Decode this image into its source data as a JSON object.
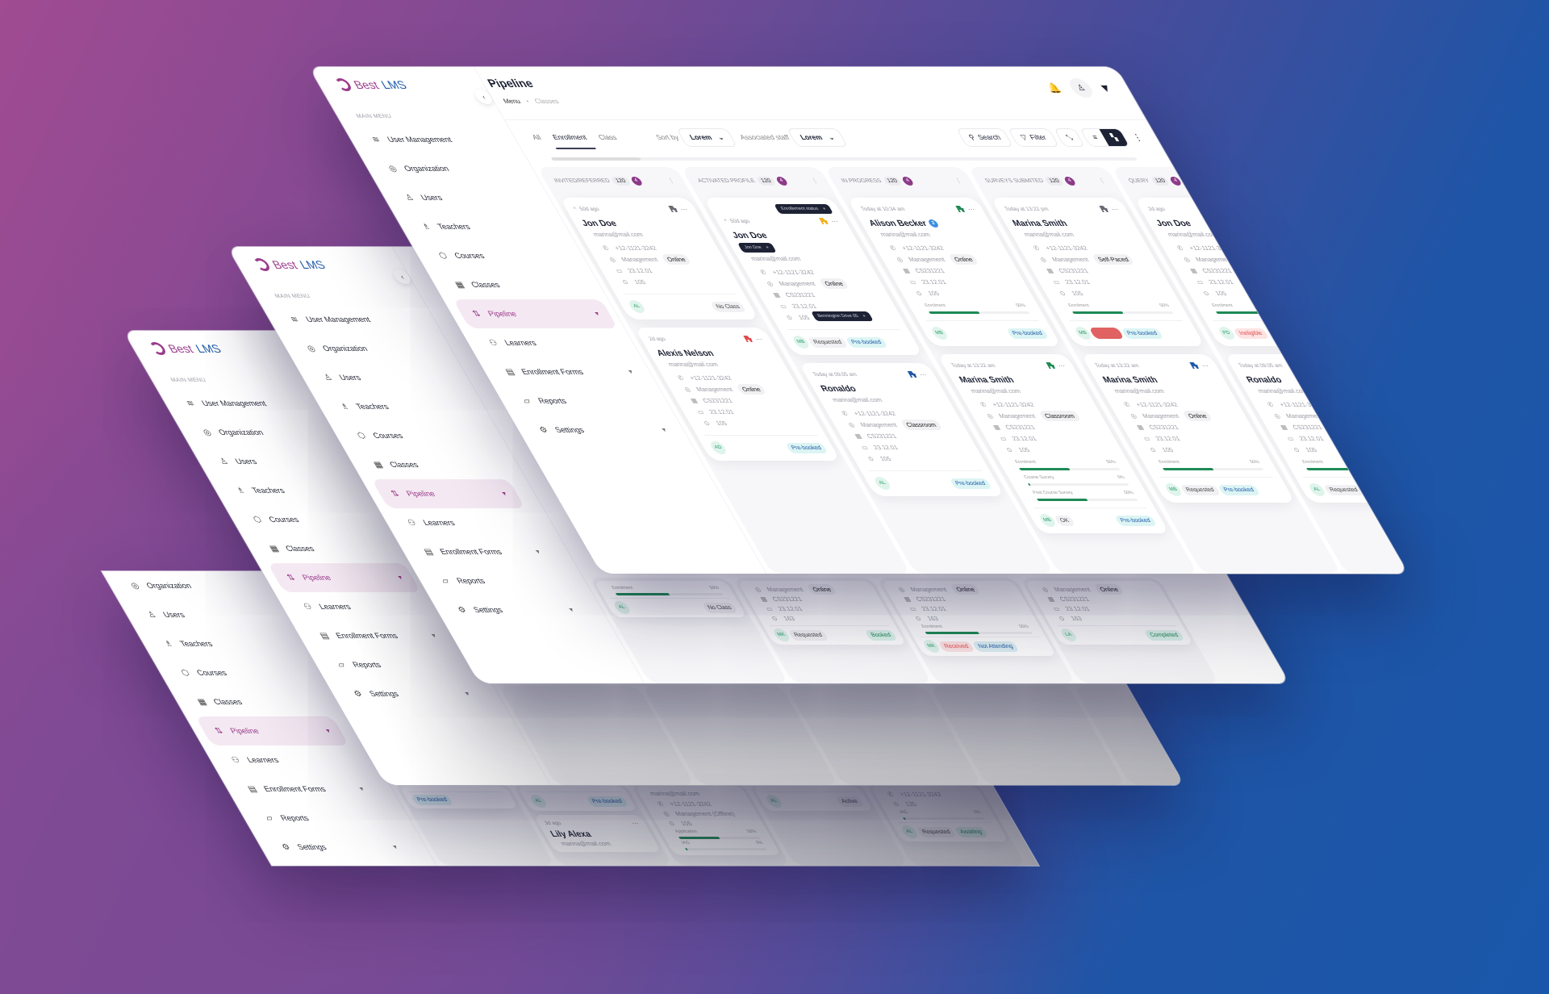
{
  "app": {
    "logo_best": "Best",
    "logo_lms": "LMS"
  },
  "sidebar": {
    "section": "MAIN MENU",
    "items": [
      {
        "label": "User Management",
        "icon": "layers-icon"
      },
      {
        "label": "Organization",
        "icon": "globe-icon"
      },
      {
        "label": "Users",
        "icon": "user-icon"
      },
      {
        "label": "Teachers",
        "icon": "teacher-icon"
      },
      {
        "label": "Courses",
        "icon": "box-icon"
      },
      {
        "label": "Classes",
        "icon": "grid-icon"
      },
      {
        "label": "Pipeline",
        "icon": "sliders-icon",
        "active": true,
        "caret": true
      },
      {
        "label": "Learners",
        "icon": "users-icon"
      },
      {
        "label": "Enrollment Forms",
        "icon": "form-icon",
        "caret": true
      },
      {
        "label": "Reports",
        "icon": "file-icon"
      },
      {
        "label": "Settings",
        "icon": "gear-icon",
        "caret": true
      }
    ]
  },
  "header": {
    "title": "Pipeline",
    "breadcrumb": [
      "Menu",
      "Classes"
    ]
  },
  "toolbar": {
    "tabs": [
      "All",
      "Enrollment",
      "Class"
    ],
    "active_tab": 1,
    "sort_label": "Sort by",
    "sort_value": "Lorem",
    "staff_label": "Associated staff",
    "staff_value": "Lorem",
    "search": "Search",
    "filter": "Filter",
    "view": "board"
  },
  "colors": {
    "brand_purple": "#9c3c8c",
    "brand_blue": "#1e5aa8",
    "gray": "#6b6b75",
    "yellow": "#f2b01e",
    "red": "#e04b4b",
    "blue": "#1e5aa8",
    "green": "#1f8a55"
  },
  "layers": [
    {
      "columns": [
        {
          "title": "INVITED/REFERRED",
          "count": "120",
          "badge": "4",
          "cards": [
            {
              "caret": true,
              "time": "50d ago",
              "flag": "gray",
              "name": "Jon Doe",
              "email": "marina@mail.com",
              "phone": "+12-1121-3242",
              "dept": "Management",
              "mode": "Online",
              "date": "23.12.01",
              "room": "105",
              "avatar": "AL",
              "tags": [
                {
                  "text": "No Class",
                  "style": "grey r"
                }
              ]
            },
            {
              "time": "2d ago",
              "flag": "red",
              "name": "Alexis Nelson",
              "email": "marina@mail.com",
              "phone": "+12-1121-3242",
              "dept": "Management",
              "mode": "Online",
              "code": "CS231221",
              "date": "23.12.01",
              "room": "105",
              "avatar": "AD",
              "tags": [
                {
                  "text": "Pre-booked",
                  "style": "cyan r"
                }
              ]
            }
          ]
        },
        {
          "title": "ACTIVATED PROFILE",
          "count": "120",
          "badge": "4",
          "cards": [
            {
              "caret": true,
              "time": "50d ago",
              "flag": "yellow",
              "flag_tip": "Enrollement status",
              "name": "Jon Doe",
              "name_tip": "Jon Doe",
              "email": "marina@mail.com",
              "phone": "+12-1121-3242",
              "dept": "Management",
              "mode": "Online",
              "code": "CS231221",
              "date": "23.12.01",
              "room": "105",
              "room_tip": "Bennington Drive 05",
              "avatar": "MB",
              "tags": [
                {
                  "text": "Requested",
                  "style": "grey"
                },
                {
                  "text": "Pre-booked",
                  "style": "cyan"
                }
              ]
            },
            {
              "time": "Today at 09:05 am",
              "flag": "blue",
              "name": "Ronaldo",
              "email": "marina@mail.com",
              "phone": "+12-1121-3242",
              "dept": "Management",
              "mode": "Classroom",
              "code": "CS231221",
              "date": "23.12.01",
              "room": "105",
              "avatar": "AL",
              "tags": [
                {
                  "text": "Pre-booked",
                  "style": "cyan r"
                }
              ]
            }
          ]
        },
        {
          "title": "IN PROGRESS",
          "count": "120",
          "badge": "4",
          "cards": [
            {
              "time": "Today at 10:34 am",
              "flag": "green",
              "name": "Alison Becker",
              "name_badge": "2",
              "email": "marina@mail.com",
              "phone": "+12-1121-3242",
              "dept": "Management",
              "mode": "Online",
              "code": "CS231221",
              "date": "23.12.01",
              "room": "105",
              "progress": [
                {
                  "label": "Enrolment",
                  "value": 50
                }
              ],
              "avatar": "MB",
              "tags": [
                {
                  "text": "Pre-booked",
                  "style": "cyan r"
                }
              ]
            },
            {
              "time": "Today at 13:22 am",
              "flag": "green",
              "name": "Marina Smith",
              "email": "marina@mail.com",
              "phone": "+12-1121-3242",
              "dept": "Management",
              "mode": "Classroom",
              "code": "CS231221",
              "date": "23.12.01",
              "room": "105",
              "progress": [
                {
                  "label": "Enrolment",
                  "value": 50
                },
                {
                  "label": "Course Survey",
                  "value": 0
                },
                {
                  "label": "Post Course Survey",
                  "value": 50
                }
              ],
              "avatar": "MB",
              "tags": [
                {
                  "text": "OK",
                  "style": "grey"
                },
                {
                  "text": "Pre-booked",
                  "style": "cyan r"
                }
              ]
            }
          ]
        },
        {
          "title": "SURVEYS SUBMITED",
          "count": "120",
          "badge": "4",
          "cards": [
            {
              "time": "Today at 13:22 pm",
              "flag": "gray",
              "name": "Marina Smith",
              "email": "marina@mail.com",
              "phone": "+12-1121-3242",
              "dept": "Management",
              "mode": "Self-Paced",
              "code": "CS231221",
              "date": "23.12.01",
              "room": "105",
              "progress": [
                {
                  "label": "Enrolment",
                  "value": 50
                }
              ],
              "avatar": "MB",
              "tags": [
                {
                  "text": "",
                  "style": "redfill"
                },
                {
                  "text": "Pre-booked",
                  "style": "cyan"
                }
              ]
            },
            {
              "time": "Today at 13:22 am",
              "flag": "blue",
              "name": "Marina Smith",
              "email": "marina@mail.com",
              "phone": "+12-1121-3242",
              "dept": "Management",
              "mode": "Online",
              "code": "CS231221",
              "date": "23.12.01",
              "room": "105",
              "progress": [
                {
                  "label": "Enrolment",
                  "value": 50
                }
              ],
              "avatar": "MB",
              "tags": [
                {
                  "text": "Requested",
                  "style": "grey"
                },
                {
                  "text": "Pre-booked",
                  "style": "cyan"
                }
              ]
            }
          ]
        },
        {
          "title": "QUERY",
          "count": "120",
          "badge": "4",
          "cards": [
            {
              "time": "2d ago",
              "name": "Jon Doe",
              "email": "marina@mail.com",
              "phone": "+12-1121-3242",
              "dept": "Management",
              "code": "CS231221",
              "date": "23.12.01",
              "room": "105",
              "progress": [
                {
                  "label": "Enrolment",
                  "value": 50
                }
              ],
              "avatar": "PD",
              "tags": [
                {
                  "text": "Ineligible",
                  "style": "red"
                }
              ]
            },
            {
              "time": "Today at 09:05 am",
              "name": "Ronaldo",
              "email": "marina@mail.com",
              "phone": "+12-1121-3242",
              "dept": "Management",
              "code": "CS231221",
              "date": "23.12.01",
              "room": "105",
              "progress": [
                {
                  "label": "Enrolment",
                  "value": 50
                }
              ],
              "avatar": "AL",
              "tags": [
                {
                  "text": "Requested",
                  "style": "grey"
                }
              ]
            }
          ]
        }
      ]
    },
    {
      "columns": [
        {
          "cards": [
            {
              "progress": [
                {
                  "label": "Enrolment",
                  "value": 50
                }
              ],
              "avatar": "AL",
              "tags": [
                {
                  "text": "No Class",
                  "style": "grey r"
                }
              ]
            }
          ]
        },
        {
          "cards": [
            {
              "dept": "Management",
              "mode": "Online",
              "code": "CS231221",
              "date": "23.12.01",
              "room": "163",
              "avatar": "MK",
              "tags": [
                {
                  "text": "Requested",
                  "style": "grey"
                },
                {
                  "text": "Booked",
                  "style": "green r"
                }
              ]
            }
          ]
        },
        {
          "cards": [
            {
              "dept": "Management",
              "mode": "Online",
              "code": "CS231221",
              "date": "23.12.01",
              "room": "163",
              "progress": [
                {
                  "label": "Enrolment",
                  "value": 50
                }
              ],
              "avatar": "MK",
              "tags": [
                {
                  "text": "Received",
                  "style": "red"
                },
                {
                  "text": "Not Attending",
                  "style": "blue"
                }
              ]
            }
          ]
        },
        {
          "cards": [
            {
              "dept": "Management",
              "mode": "Online",
              "code": "CS231221",
              "date": "23.12.01",
              "room": "163",
              "avatar": "LA",
              "tags": [
                {
                  "text": "Completed",
                  "style": "green r"
                }
              ]
            }
          ]
        }
      ]
    },
    {
      "columns": [
        {
          "cards": []
        },
        {
          "cards": []
        },
        {
          "cards": []
        },
        {
          "cards": []
        },
        {
          "cards": []
        }
      ]
    },
    {
      "columns": [
        {
          "cards": [
            {
              "tags": [
                {
                  "text": "Pre-booked",
                  "style": "cyan"
                }
              ]
            }
          ]
        },
        {
          "cards": [
            {
              "avatar": "AL",
              "tags": [
                {
                  "text": "Pre-booked",
                  "style": "cyan r"
                }
              ]
            },
            {
              "time": "3d ago",
              "name": "Lily Alexa",
              "email": "marina@mail.com"
            }
          ]
        },
        {
          "cards": [
            {
              "email": "marina@mail.com",
              "dept": "Management (Offline)",
              "phone": "+12-1121-3242",
              "room": "105",
              "progress": [
                {
                  "label": "Application",
                  "value": 50
                },
                {
                  "label": "IAG",
                  "value": 0
                }
              ]
            }
          ]
        },
        {
          "cards": [
            {
              "avatar": "AL",
              "tags": [
                {
                  "text": "Active",
                  "style": "grey r"
                }
              ]
            }
          ]
        },
        {
          "cards": [
            {
              "phone": "+12-1121-3242",
              "room": "135",
              "progress": [
                {
                  "label": "IAG",
                  "value": 0
                }
              ],
              "avatar": "AL",
              "tags": [
                {
                  "text": "Requested",
                  "style": "grey"
                },
                {
                  "text": "Awaiting",
                  "style": "green"
                }
              ]
            }
          ]
        }
      ]
    }
  ]
}
